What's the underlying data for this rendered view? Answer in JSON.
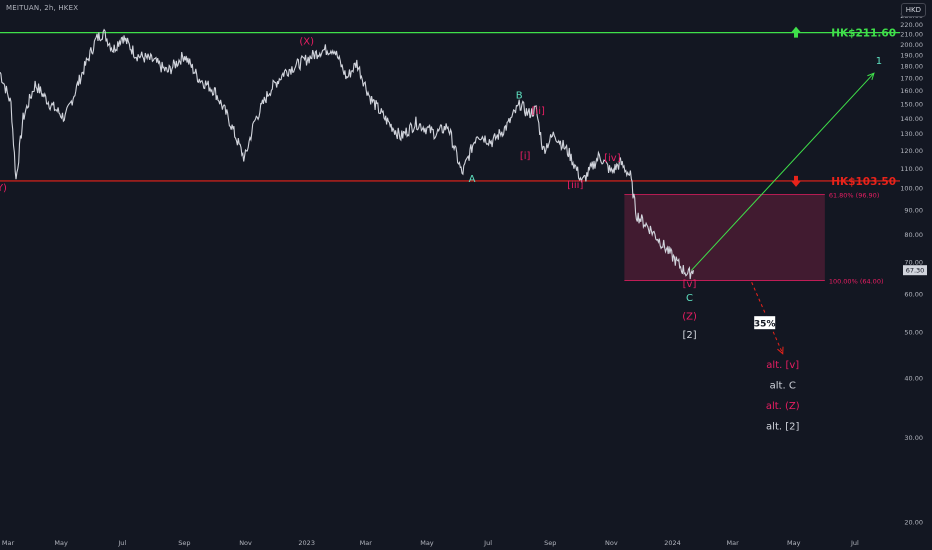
{
  "header": {
    "symbol": "MEITUAN, 2h, HKEX",
    "currency": "HKD"
  },
  "colors": {
    "background": "#131722",
    "candle": "#d1d4dc",
    "axis_text": "#b2b5be",
    "green": "#3fe04a",
    "red": "#e8231a",
    "magenta": "#e91e63",
    "teal": "#5ee0c0",
    "zone_fill": "#4a1c33"
  },
  "chart_data": {
    "type": "line",
    "title": "MEITUAN, 2h, HKEX",
    "xlabel": "",
    "ylabel": "",
    "y_axis": {
      "scale": "log",
      "range": [
        18.5,
        236
      ],
      "tick_labels": [
        "230.00",
        "220.00",
        "210.00",
        "200.00",
        "190.00",
        "180.00",
        "170.00",
        "160.00",
        "150.00",
        "140.00",
        "130.00",
        "120.00",
        "110.00",
        "100.00",
        "90.00",
        "80.00",
        "70.00",
        "60.00",
        "50.00",
        "40.00",
        "30.00",
        "20.00"
      ]
    },
    "x_axis": {
      "tick_labels": [
        "Mar",
        "May",
        "Jul",
        "Sep",
        "Nov",
        "2023",
        "Mar",
        "May",
        "Jul",
        "Sep",
        "Nov",
        "2024",
        "Mar",
        "May",
        "Jul"
      ],
      "range": [
        "2022-03-01",
        "2024-08-15"
      ]
    },
    "price_path": {
      "description_free": true,
      "points": [
        [
          "2022-03-01",
          175
        ],
        [
          "2022-03-12",
          150
        ],
        [
          "2022-03-17",
          104
        ],
        [
          "2022-03-24",
          140
        ],
        [
          "2022-04-05",
          165
        ],
        [
          "2022-04-20",
          150
        ],
        [
          "2022-05-05",
          140
        ],
        [
          "2022-05-20",
          170
        ],
        [
          "2022-06-05",
          205
        ],
        [
          "2022-06-12",
          212
        ],
        [
          "2022-06-22",
          195
        ],
        [
          "2022-07-01",
          208
        ],
        [
          "2022-07-15",
          190
        ],
        [
          "2022-08-01",
          185
        ],
        [
          "2022-08-15",
          175
        ],
        [
          "2022-09-01",
          190
        ],
        [
          "2022-09-15",
          170
        ],
        [
          "2022-10-01",
          160
        ],
        [
          "2022-10-15",
          140
        ],
        [
          "2022-10-31",
          115
        ],
        [
          "2022-11-10",
          138
        ],
        [
          "2022-11-25",
          160
        ],
        [
          "2022-12-10",
          175
        ],
        [
          "2022-12-30",
          185
        ],
        [
          "2023-01-15",
          194
        ],
        [
          "2023-01-28",
          196
        ],
        [
          "2023-02-10",
          170
        ],
        [
          "2023-02-20",
          183
        ],
        [
          "2023-03-05",
          155
        ],
        [
          "2023-03-20",
          140
        ],
        [
          "2023-04-05",
          128
        ],
        [
          "2023-04-20",
          137
        ],
        [
          "2023-05-10",
          130
        ],
        [
          "2023-05-22",
          135
        ],
        [
          "2023-06-05",
          107
        ],
        [
          "2023-06-20",
          130
        ],
        [
          "2023-07-05",
          125
        ],
        [
          "2023-07-20",
          135
        ],
        [
          "2023-08-02",
          150
        ],
        [
          "2023-08-10",
          143
        ],
        [
          "2023-08-18",
          146
        ],
        [
          "2023-08-25",
          120
        ],
        [
          "2023-09-05",
          130
        ],
        [
          "2023-09-20",
          118
        ],
        [
          "2023-10-03",
          103
        ],
        [
          "2023-10-12",
          110
        ],
        [
          "2023-10-20",
          117
        ],
        [
          "2023-11-01",
          108
        ],
        [
          "2023-11-10",
          113
        ],
        [
          "2023-11-20",
          106
        ],
        [
          "2023-11-26",
          88
        ],
        [
          "2023-12-10",
          82
        ],
        [
          "2023-12-25",
          75
        ],
        [
          "2024-01-10",
          68
        ],
        [
          "2024-01-17",
          66
        ],
        [
          "2024-01-22",
          67.3
        ]
      ]
    },
    "levels": [
      {
        "name": "resistance",
        "value": 211.6,
        "label": "HK$211.60",
        "color": "#3fe04a"
      },
      {
        "name": "support",
        "value": 103.5,
        "label": "HK$103.50",
        "color": "#e8231a"
      }
    ],
    "zone": {
      "from": 64.0,
      "to": 96.9,
      "x_range": [
        "2023-11-14",
        "2024-06-01"
      ],
      "top_label": "61.80% (96.90)",
      "bottom_label": "100.00% (64.00)"
    },
    "last_price": {
      "value": 67.3,
      "label": "67.30"
    },
    "projections": [
      {
        "name": "primary",
        "from": [
          "2024-01-20",
          67.3
        ],
        "to": [
          "2024-07-20",
          174
        ],
        "color": "#3fe04a"
      },
      {
        "name": "alternative",
        "from": [
          "2024-03-20",
          63.5
        ],
        "to": [
          "2024-04-20",
          45
        ],
        "color": "#e8231a"
      }
    ],
    "annotations": [
      {
        "text": "(X)",
        "at": [
          "2023-01-01",
          200
        ],
        "color": "#e91e63"
      },
      {
        "text": "(Y)",
        "at": [
          "2022-03-01",
          98.5
        ],
        "color": "#e91e63"
      },
      {
        "text": "A",
        "at": [
          "2023-06-15",
          103
        ],
        "color": "#5ee0c0"
      },
      {
        "text": "B",
        "at": [
          "2023-08-01",
          154
        ],
        "color": "#5ee0c0"
      },
      {
        "text": "[i]",
        "at": [
          "2023-08-07",
          115
        ],
        "color": "#e91e63"
      },
      {
        "text": "[ii]",
        "at": [
          "2023-08-20",
          143
        ],
        "color": "#e91e63"
      },
      {
        "text": "[iii]",
        "at": [
          "2023-09-26",
          100
        ],
        "color": "#e91e63"
      },
      {
        "text": "[iv]",
        "at": [
          "2023-11-02",
          114
        ],
        "color": "#e91e63"
      },
      {
        "text": "[v]",
        "at": [
          "2024-01-18",
          62
        ],
        "color": "#e91e63"
      },
      {
        "text": "C",
        "at": [
          "2024-01-18",
          58
        ],
        "color": "#5ee0c0"
      },
      {
        "text": "(Z)",
        "at": [
          "2024-01-18",
          53
        ],
        "color": "#e91e63"
      },
      {
        "text": "[2]",
        "at": [
          "2024-01-18",
          48.5
        ],
        "color": "#d1d4dc"
      },
      {
        "text": "1",
        "at": [
          "2024-07-25",
          182
        ],
        "color": "#5ee0c0"
      },
      {
        "text": "alt. [v]",
        "at": [
          "2024-04-20",
          42
        ],
        "color": "#e91e63"
      },
      {
        "text": "alt. C",
        "at": [
          "2024-04-20",
          38
        ],
        "color": "#d1d4dc"
      },
      {
        "text": "alt. (Z)",
        "at": [
          "2024-04-20",
          34.5
        ],
        "color": "#e91e63"
      },
      {
        "text": "alt. [2]",
        "at": [
          "2024-04-20",
          31.2
        ],
        "color": "#d1d4dc"
      }
    ],
    "badge": {
      "text": "35%"
    },
    "arrows": [
      {
        "name": "up-arrow-icon",
        "direction": "up",
        "color": "#3fe04a",
        "value": 211.6
      },
      {
        "name": "down-arrow-icon",
        "direction": "down",
        "color": "#e8231a",
        "value": 103.5
      }
    ],
    "grid": false,
    "legend": "none"
  }
}
